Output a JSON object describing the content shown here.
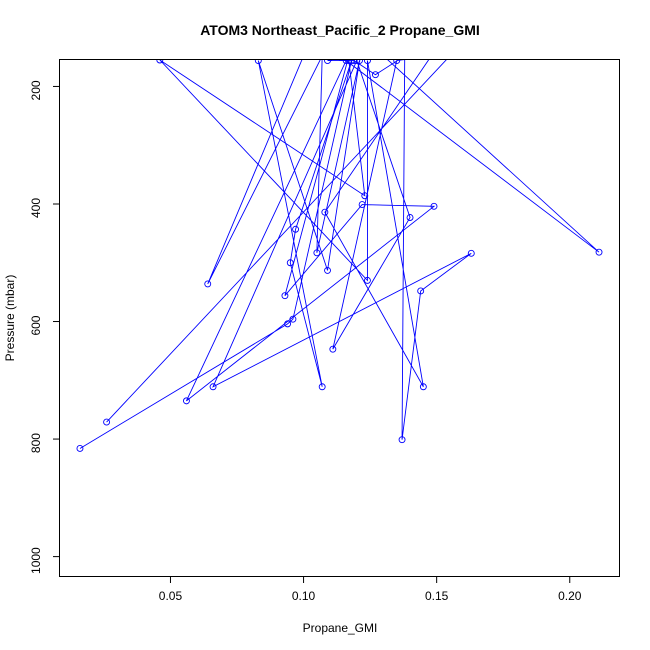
{
  "chart_data": {
    "type": "line",
    "title": "ATOM3 Northeast_Pacific_2 Propane_GMI",
    "xlabel": "Propane_GMI",
    "ylabel": "Pressure (mbar)",
    "x_ticks": [
      0.05,
      0.1,
      0.15,
      0.2
    ],
    "x_tick_labels": [
      "0.05",
      "0.10",
      "0.15",
      "0.20"
    ],
    "y_ticks": [
      200,
      400,
      600,
      800,
      1000
    ],
    "y_tick_labels": [
      "200",
      "400",
      "600",
      "800",
      "1000"
    ],
    "xlim": [
      0.0085,
      0.2185
    ],
    "ylim": [
      1033,
      155
    ],
    "y_reversed": true,
    "grid": false,
    "legend": "none",
    "series_color": "#0000ff",
    "series": [
      {
        "x": [
          0.016,
          0.094,
          0.096,
          0.118,
          0.097,
          0.095,
          0.107,
          0.083,
          0.109,
          0.121,
          0.105,
          0.107,
          0.064,
          0.1,
          0.117,
          0.123,
          0.046,
          0.124,
          0.124,
          0.145,
          0.108,
          0.148,
          0.135,
          0.111,
          0.14,
          0.12,
          0.066,
          0.163,
          0.144,
          0.137,
          0.138,
          0.127,
          0.119,
          0.109,
          0.117,
          0.093,
          0.122,
          0.149,
          0.056,
          0.116,
          0.211,
          0.13,
          0.155,
          0.026
        ],
        "y": [
          816,
          604,
          596,
          156,
          443,
          500,
          711,
          156,
          513,
          156,
          483,
          148,
          536,
          148,
          156,
          386,
          155,
          530,
          156,
          711,
          414,
          148,
          156,
          647,
          423,
          156,
          711,
          484,
          548,
          801,
          148,
          180,
          156,
          156,
          148,
          556,
          401,
          404,
          735,
          156,
          482,
          148,
          148,
          771
        ]
      }
    ]
  }
}
